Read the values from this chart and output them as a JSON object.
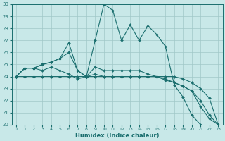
{
  "xlabel": "Humidex (Indice chaleur)",
  "xlim": [
    0,
    23
  ],
  "ylim": [
    20,
    30
  ],
  "yticks": [
    20,
    21,
    22,
    23,
    24,
    25,
    26,
    27,
    28,
    29,
    30
  ],
  "xticks": [
    0,
    1,
    2,
    3,
    4,
    5,
    6,
    7,
    8,
    9,
    10,
    11,
    12,
    13,
    14,
    15,
    16,
    17,
    18,
    19,
    20,
    21,
    22,
    23
  ],
  "bg_color": "#c8e8e8",
  "grid_color": "#a0c8c8",
  "line_color": "#1a6e6e",
  "lines": [
    {
      "x": [
        0,
        1,
        2,
        3,
        4,
        5,
        6,
        7,
        8,
        9,
        10,
        11,
        12,
        13,
        14,
        15,
        16,
        17,
        18,
        19,
        20,
        21,
        22,
        23
      ],
      "y": [
        24,
        24.7,
        24.7,
        25.0,
        25.2,
        25.5,
        26.8,
        24.5,
        24.0,
        27.0,
        30.0,
        29.5,
        27.0,
        28.3,
        27.0,
        28.2,
        27.5,
        26.5,
        23.3,
        22.3,
        20.8,
        20.0,
        19.8,
        20.0
      ]
    },
    {
      "x": [
        0,
        1,
        2,
        3,
        4,
        5,
        6,
        7,
        8,
        9,
        10,
        11,
        12,
        13,
        14,
        15,
        16,
        17,
        18,
        19,
        20,
        21,
        22,
        23
      ],
      "y": [
        24,
        24.7,
        24.7,
        25.0,
        25.2,
        25.5,
        26.0,
        24.5,
        24.0,
        24.8,
        24.5,
        24.5,
        24.5,
        24.5,
        24.5,
        24.2,
        24.0,
        23.7,
        23.5,
        23.2,
        22.8,
        21.5,
        20.5,
        20.0
      ]
    },
    {
      "x": [
        0,
        1,
        2,
        3,
        4,
        5,
        6,
        7,
        8,
        9,
        10,
        11,
        12,
        13,
        14,
        15,
        16,
        17,
        18,
        19,
        20,
        21,
        22,
        23
      ],
      "y": [
        24,
        24.7,
        24.7,
        24.5,
        24.8,
        24.5,
        24.2,
        23.8,
        24.0,
        24.2,
        24.0,
        24.0,
        24.0,
        24.0,
        24.0,
        24.0,
        24.0,
        23.8,
        23.5,
        23.2,
        22.8,
        22.0,
        20.8,
        20.0
      ]
    },
    {
      "x": [
        0,
        1,
        2,
        3,
        4,
        5,
        6,
        7,
        8,
        9,
        10,
        11,
        12,
        13,
        14,
        15,
        16,
        17,
        18,
        19,
        20,
        21,
        22,
        23
      ],
      "y": [
        24,
        24.0,
        24.0,
        24.0,
        24.0,
        24.0,
        24.0,
        24.0,
        24.0,
        24.0,
        24.0,
        24.0,
        24.0,
        24.0,
        24.0,
        24.0,
        24.0,
        24.0,
        24.0,
        23.8,
        23.5,
        23.0,
        22.2,
        20.0
      ]
    }
  ]
}
